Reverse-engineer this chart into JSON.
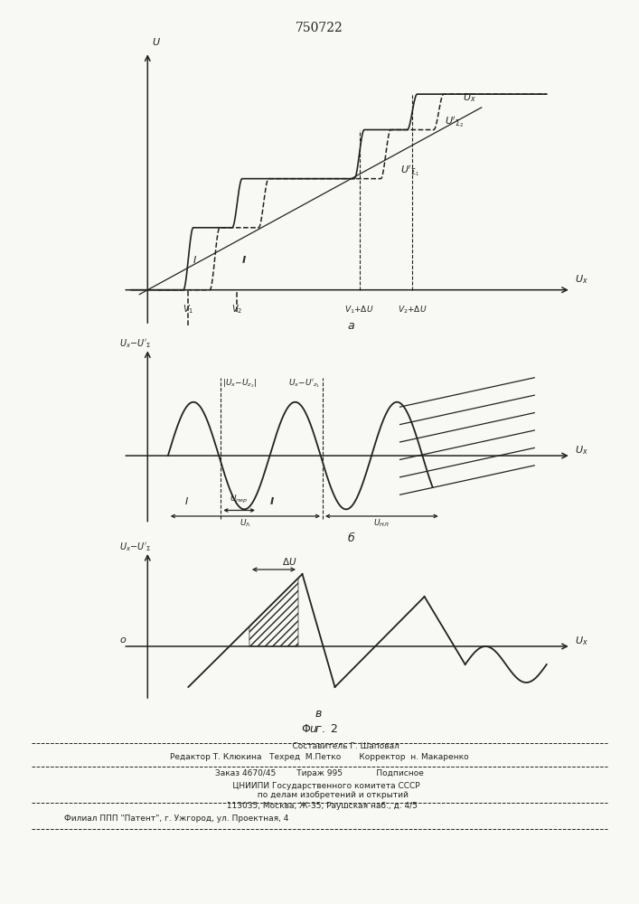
{
  "title": "750722",
  "fig_width": 7.07,
  "fig_height": 10.0,
  "bg_color": "#f8f8f5",
  "line_color": "#222222",
  "footer_lines": [
    "                    Составитель Г. Шаповал",
    "Редактор Т. Клюкина   Техред  М.Петко       Корректор  н. Макаренко",
    "Заказ 4670/45        Тираж 995             Подписное",
    "     ЦНИИПИ Государственного комитета СССР",
    "          по делам изобретений и открытий",
    "  113035, Москва, Ж-35, Раушская наб., д. 4/5",
    "Филиал ППП \"Патент\", г. Ужгород, ул. Проектная, 4"
  ]
}
